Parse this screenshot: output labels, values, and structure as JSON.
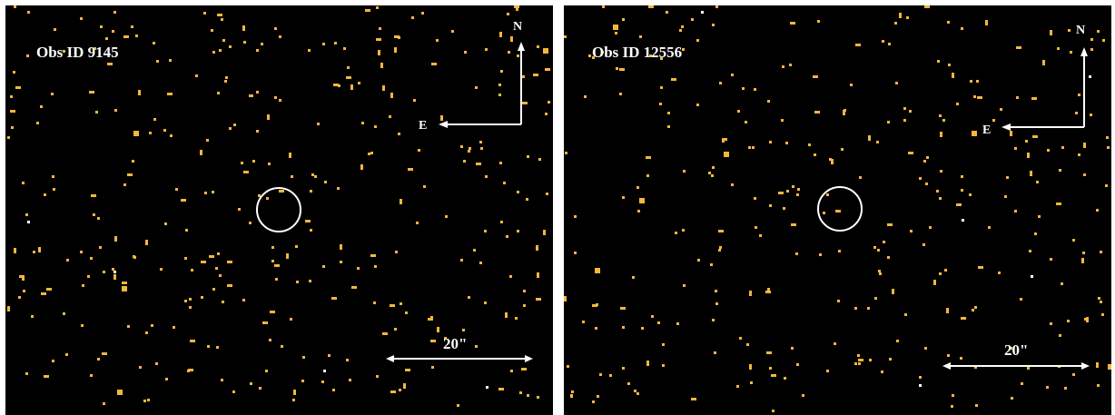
{
  "panels": [
    {
      "obs_label": "Obs ID 9145",
      "north_label": "N",
      "east_label": "E",
      "scale_label": "20\""
    },
    {
      "obs_label": "Obs ID 12556",
      "north_label": "N",
      "east_label": "E",
      "scale_label": "20\""
    }
  ],
  "colors": {
    "background": "#000000",
    "photon": "#f5b73b",
    "photon_bright": "#ffffff",
    "overlay": "#ffffff"
  }
}
